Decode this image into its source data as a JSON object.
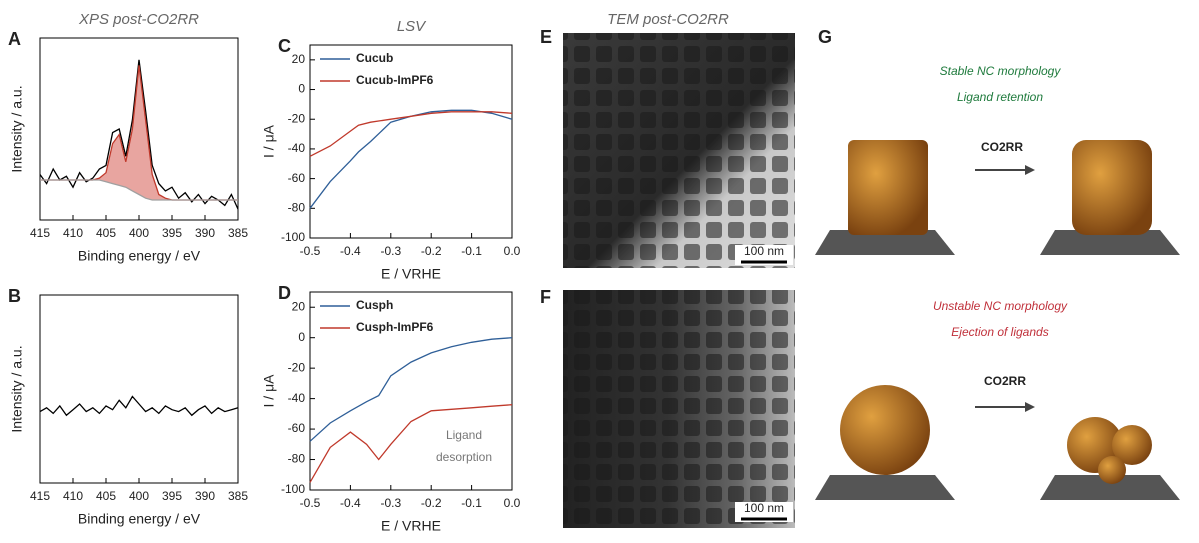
{
  "chart_data": [
    {
      "type": "line",
      "panel": "A",
      "title": "XPS post-CO2RR",
      "xlabel": "Binding energy / eV",
      "ylabel": "Intensity / a.u.",
      "x": [
        415,
        414,
        413,
        412,
        411,
        410,
        409,
        408,
        407,
        406,
        405,
        404,
        403,
        402,
        401,
        400,
        399,
        398,
        397,
        396,
        395,
        394,
        393,
        392,
        391,
        390,
        389,
        388,
        387,
        386,
        385
      ],
      "series": [
        {
          "color": "#000000",
          "values": [
            25,
            20,
            28,
            22,
            24,
            18,
            26,
            21,
            23,
            28,
            30,
            48,
            50,
            35,
            55,
            88,
            60,
            30,
            20,
            16,
            18,
            12,
            15,
            10,
            14,
            9,
            13,
            11,
            8,
            14,
            6
          ]
        },
        {
          "color": "#c0392b",
          "fill_color": "#e8a5a0",
          "values": [
            22,
            22,
            22,
            22,
            22,
            22,
            22,
            22,
            22,
            23,
            26,
            42,
            47,
            32,
            50,
            85,
            55,
            25,
            14,
            12,
            11,
            11,
            11,
            11,
            11,
            11,
            11,
            11,
            11,
            11,
            11
          ]
        },
        {
          "color": "#a0a0a0",
          "values": [
            22,
            22,
            22,
            22,
            22,
            22,
            22,
            22,
            22,
            22,
            21,
            20,
            19,
            18,
            16,
            14,
            12,
            11,
            11,
            11,
            11,
            11,
            11,
            11,
            11,
            11,
            11,
            11,
            11,
            11,
            11
          ]
        }
      ],
      "xlim": [
        415,
        385
      ],
      "ylim": [
        0,
        100
      ],
      "xticks": [
        415,
        410,
        405,
        400,
        395,
        390,
        385
      ]
    },
    {
      "type": "line",
      "panel": "B",
      "xlabel": "Binding energy / eV",
      "ylabel": "Intensity / a.u.",
      "x": [
        415,
        414,
        413,
        412,
        411,
        410,
        409,
        408,
        407,
        406,
        405,
        404,
        403,
        402,
        401,
        400,
        399,
        398,
        397,
        396,
        395,
        394,
        393,
        392,
        391,
        390,
        389,
        388,
        387,
        386,
        385
      ],
      "series": [
        {
          "color": "#000000",
          "values": [
            38,
            40,
            37,
            41,
            36,
            39,
            42,
            38,
            40,
            37,
            41,
            39,
            44,
            40,
            46,
            42,
            38,
            40,
            37,
            41,
            39,
            38,
            40,
            36,
            39,
            41,
            37,
            40,
            38,
            39,
            40
          ]
        }
      ],
      "xlim": [
        415,
        385
      ],
      "ylim": [
        0,
        100
      ],
      "xticks": [
        415,
        410,
        405,
        400,
        395,
        390,
        385
      ]
    },
    {
      "type": "line",
      "panel": "C",
      "title": "LSV",
      "xlabel": "E / VRHE",
      "ylabel": "I / μA",
      "legend": "upper left",
      "x": [
        -0.5,
        -0.45,
        -0.4,
        -0.38,
        -0.35,
        -0.3,
        -0.25,
        -0.2,
        -0.15,
        -0.1,
        -0.05,
        0
      ],
      "series": [
        {
          "name": "Cucub",
          "color": "#2f5f98",
          "values": [
            -80,
            -62,
            -48,
            -42,
            -35,
            -22,
            -18,
            -15,
            -14,
            -14,
            -16,
            -20
          ]
        },
        {
          "name": "Cucub-ImPF6",
          "color": "#c0392b",
          "values": [
            -45,
            -38,
            -28,
            -24,
            -22,
            -20,
            -18,
            -16,
            -15,
            -15,
            -15,
            -16
          ]
        }
      ],
      "xlim": [
        -0.5,
        0
      ],
      "ylim": [
        -100,
        30
      ],
      "xticks": [
        -0.5,
        -0.4,
        -0.3,
        -0.2,
        -0.1,
        {
          "value": 0,
          "label": "0.0"
        }
      ],
      "yticks": [
        -100,
        -80,
        -60,
        -40,
        -20,
        0,
        20
      ]
    },
    {
      "type": "line",
      "panel": "D",
      "xlabel": "E / VRHE",
      "ylabel": "I / μA",
      "legend": "upper left",
      "annotation": [
        "Ligand",
        "desorption"
      ],
      "x": [
        -0.5,
        -0.45,
        -0.4,
        -0.36,
        -0.33,
        -0.3,
        -0.25,
        -0.2,
        -0.15,
        -0.1,
        -0.05,
        0
      ],
      "series": [
        {
          "name": "Cusph",
          "color": "#2f5f98",
          "values": [
            -68,
            -56,
            -48,
            -42,
            -38,
            -25,
            -16,
            -10,
            -6,
            -3,
            -1,
            0
          ]
        },
        {
          "name": "Cusph-ImPF6",
          "color": "#c0392b",
          "values": [
            -95,
            -72,
            -62,
            -70,
            -80,
            -70,
            -55,
            -48,
            -47,
            -46,
            -45,
            -44
          ]
        }
      ],
      "xlim": [
        -0.5,
        0
      ],
      "ylim": [
        -100,
        30
      ],
      "xticks": [
        -0.5,
        -0.4,
        -0.3,
        -0.2,
        -0.1,
        {
          "value": 0,
          "label": "0.0"
        }
      ],
      "yticks": [
        -100,
        -80,
        -60,
        -40,
        -20,
        0,
        20
      ]
    }
  ],
  "tem": {
    "title": "TEM post-CO2RR",
    "panels": [
      {
        "label": "E",
        "scale": "100 nm"
      },
      {
        "label": "F",
        "scale": "100 nm"
      }
    ]
  },
  "schematic": {
    "label": "G",
    "top": [
      "Stable NC morphology",
      "Ligand retention"
    ],
    "bottom": [
      "Unstable NC morphology",
      "Ejection of ligands"
    ],
    "arrow_top": "CO2RR",
    "arrow_bottom": "CO2RR"
  }
}
